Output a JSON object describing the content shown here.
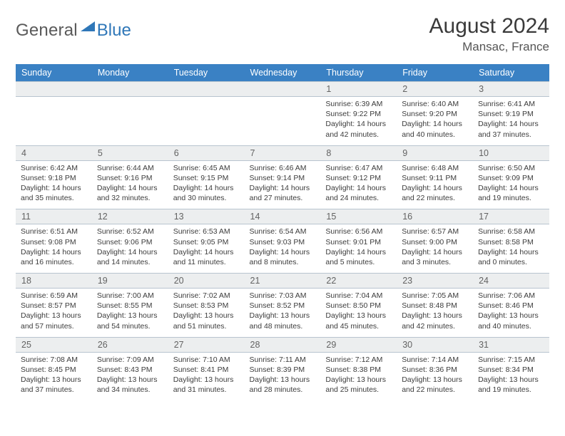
{
  "brand": {
    "general": "General",
    "blue": "Blue"
  },
  "title": {
    "month": "August 2024",
    "location": "Mansac, France"
  },
  "colors": {
    "header_bg": "#3a81c4",
    "header_text": "#ffffff",
    "daynum_bg": "#eceeef",
    "daynum_text": "#636363",
    "body_text": "#3c3c3c",
    "border": "#b8c4cf",
    "logo_gray": "#5a5a5a",
    "logo_blue": "#2f77b8",
    "logo_icon_fill": "#2f77b8"
  },
  "weekdays": [
    "Sunday",
    "Monday",
    "Tuesday",
    "Wednesday",
    "Thursday",
    "Friday",
    "Saturday"
  ],
  "weeks": [
    {
      "nums": [
        "",
        "",
        "",
        "",
        "1",
        "2",
        "3"
      ],
      "cells": [
        null,
        null,
        null,
        null,
        {
          "sunrise": "Sunrise: 6:39 AM",
          "sunset": "Sunset: 9:22 PM",
          "daylight1": "Daylight: 14 hours",
          "daylight2": "and 42 minutes."
        },
        {
          "sunrise": "Sunrise: 6:40 AM",
          "sunset": "Sunset: 9:20 PM",
          "daylight1": "Daylight: 14 hours",
          "daylight2": "and 40 minutes."
        },
        {
          "sunrise": "Sunrise: 6:41 AM",
          "sunset": "Sunset: 9:19 PM",
          "daylight1": "Daylight: 14 hours",
          "daylight2": "and 37 minutes."
        }
      ]
    },
    {
      "nums": [
        "4",
        "5",
        "6",
        "7",
        "8",
        "9",
        "10"
      ],
      "cells": [
        {
          "sunrise": "Sunrise: 6:42 AM",
          "sunset": "Sunset: 9:18 PM",
          "daylight1": "Daylight: 14 hours",
          "daylight2": "and 35 minutes."
        },
        {
          "sunrise": "Sunrise: 6:44 AM",
          "sunset": "Sunset: 9:16 PM",
          "daylight1": "Daylight: 14 hours",
          "daylight2": "and 32 minutes."
        },
        {
          "sunrise": "Sunrise: 6:45 AM",
          "sunset": "Sunset: 9:15 PM",
          "daylight1": "Daylight: 14 hours",
          "daylight2": "and 30 minutes."
        },
        {
          "sunrise": "Sunrise: 6:46 AM",
          "sunset": "Sunset: 9:14 PM",
          "daylight1": "Daylight: 14 hours",
          "daylight2": "and 27 minutes."
        },
        {
          "sunrise": "Sunrise: 6:47 AM",
          "sunset": "Sunset: 9:12 PM",
          "daylight1": "Daylight: 14 hours",
          "daylight2": "and 24 minutes."
        },
        {
          "sunrise": "Sunrise: 6:48 AM",
          "sunset": "Sunset: 9:11 PM",
          "daylight1": "Daylight: 14 hours",
          "daylight2": "and 22 minutes."
        },
        {
          "sunrise": "Sunrise: 6:50 AM",
          "sunset": "Sunset: 9:09 PM",
          "daylight1": "Daylight: 14 hours",
          "daylight2": "and 19 minutes."
        }
      ]
    },
    {
      "nums": [
        "11",
        "12",
        "13",
        "14",
        "15",
        "16",
        "17"
      ],
      "cells": [
        {
          "sunrise": "Sunrise: 6:51 AM",
          "sunset": "Sunset: 9:08 PM",
          "daylight1": "Daylight: 14 hours",
          "daylight2": "and 16 minutes."
        },
        {
          "sunrise": "Sunrise: 6:52 AM",
          "sunset": "Sunset: 9:06 PM",
          "daylight1": "Daylight: 14 hours",
          "daylight2": "and 14 minutes."
        },
        {
          "sunrise": "Sunrise: 6:53 AM",
          "sunset": "Sunset: 9:05 PM",
          "daylight1": "Daylight: 14 hours",
          "daylight2": "and 11 minutes."
        },
        {
          "sunrise": "Sunrise: 6:54 AM",
          "sunset": "Sunset: 9:03 PM",
          "daylight1": "Daylight: 14 hours",
          "daylight2": "and 8 minutes."
        },
        {
          "sunrise": "Sunrise: 6:56 AM",
          "sunset": "Sunset: 9:01 PM",
          "daylight1": "Daylight: 14 hours",
          "daylight2": "and 5 minutes."
        },
        {
          "sunrise": "Sunrise: 6:57 AM",
          "sunset": "Sunset: 9:00 PM",
          "daylight1": "Daylight: 14 hours",
          "daylight2": "and 3 minutes."
        },
        {
          "sunrise": "Sunrise: 6:58 AM",
          "sunset": "Sunset: 8:58 PM",
          "daylight1": "Daylight: 14 hours",
          "daylight2": "and 0 minutes."
        }
      ]
    },
    {
      "nums": [
        "18",
        "19",
        "20",
        "21",
        "22",
        "23",
        "24"
      ],
      "cells": [
        {
          "sunrise": "Sunrise: 6:59 AM",
          "sunset": "Sunset: 8:57 PM",
          "daylight1": "Daylight: 13 hours",
          "daylight2": "and 57 minutes."
        },
        {
          "sunrise": "Sunrise: 7:00 AM",
          "sunset": "Sunset: 8:55 PM",
          "daylight1": "Daylight: 13 hours",
          "daylight2": "and 54 minutes."
        },
        {
          "sunrise": "Sunrise: 7:02 AM",
          "sunset": "Sunset: 8:53 PM",
          "daylight1": "Daylight: 13 hours",
          "daylight2": "and 51 minutes."
        },
        {
          "sunrise": "Sunrise: 7:03 AM",
          "sunset": "Sunset: 8:52 PM",
          "daylight1": "Daylight: 13 hours",
          "daylight2": "and 48 minutes."
        },
        {
          "sunrise": "Sunrise: 7:04 AM",
          "sunset": "Sunset: 8:50 PM",
          "daylight1": "Daylight: 13 hours",
          "daylight2": "and 45 minutes."
        },
        {
          "sunrise": "Sunrise: 7:05 AM",
          "sunset": "Sunset: 8:48 PM",
          "daylight1": "Daylight: 13 hours",
          "daylight2": "and 42 minutes."
        },
        {
          "sunrise": "Sunrise: 7:06 AM",
          "sunset": "Sunset: 8:46 PM",
          "daylight1": "Daylight: 13 hours",
          "daylight2": "and 40 minutes."
        }
      ]
    },
    {
      "nums": [
        "25",
        "26",
        "27",
        "28",
        "29",
        "30",
        "31"
      ],
      "cells": [
        {
          "sunrise": "Sunrise: 7:08 AM",
          "sunset": "Sunset: 8:45 PM",
          "daylight1": "Daylight: 13 hours",
          "daylight2": "and 37 minutes."
        },
        {
          "sunrise": "Sunrise: 7:09 AM",
          "sunset": "Sunset: 8:43 PM",
          "daylight1": "Daylight: 13 hours",
          "daylight2": "and 34 minutes."
        },
        {
          "sunrise": "Sunrise: 7:10 AM",
          "sunset": "Sunset: 8:41 PM",
          "daylight1": "Daylight: 13 hours",
          "daylight2": "and 31 minutes."
        },
        {
          "sunrise": "Sunrise: 7:11 AM",
          "sunset": "Sunset: 8:39 PM",
          "daylight1": "Daylight: 13 hours",
          "daylight2": "and 28 minutes."
        },
        {
          "sunrise": "Sunrise: 7:12 AM",
          "sunset": "Sunset: 8:38 PM",
          "daylight1": "Daylight: 13 hours",
          "daylight2": "and 25 minutes."
        },
        {
          "sunrise": "Sunrise: 7:14 AM",
          "sunset": "Sunset: 8:36 PM",
          "daylight1": "Daylight: 13 hours",
          "daylight2": "and 22 minutes."
        },
        {
          "sunrise": "Sunrise: 7:15 AM",
          "sunset": "Sunset: 8:34 PM",
          "daylight1": "Daylight: 13 hours",
          "daylight2": "and 19 minutes."
        }
      ]
    }
  ]
}
